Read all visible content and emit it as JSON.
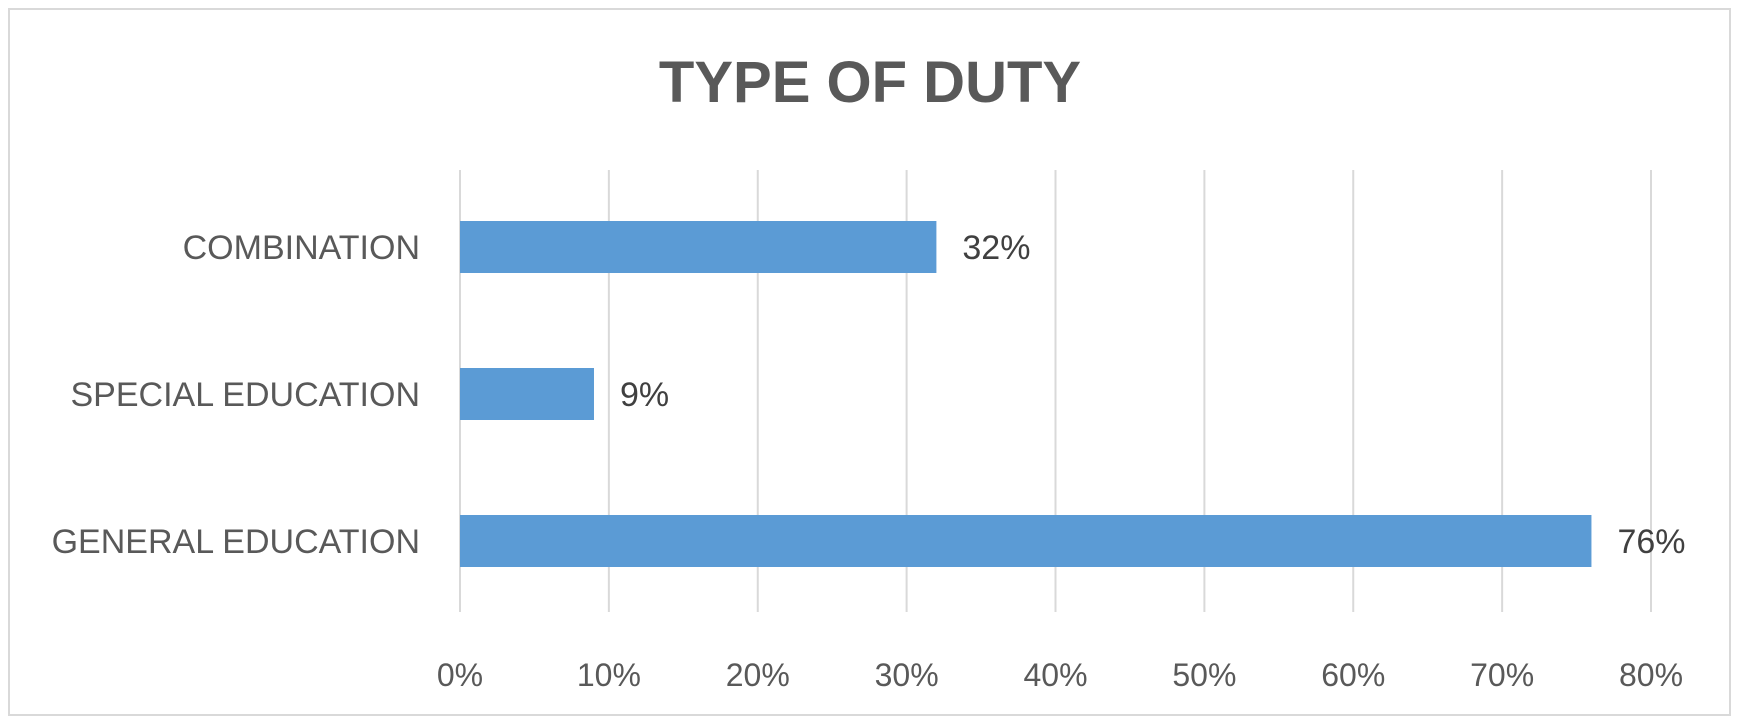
{
  "chart_data": {
    "type": "bar",
    "orientation": "horizontal",
    "title": "TYPE OF DUTY",
    "categories": [
      "COMBINATION",
      "SPECIAL EDUCATION",
      "GENERAL EDUCATION"
    ],
    "values": [
      32,
      9,
      76
    ],
    "data_labels": [
      "32%",
      "9%",
      "76%"
    ],
    "xlim": [
      0,
      80
    ],
    "x_ticks": [
      0,
      10,
      20,
      30,
      40,
      50,
      60,
      70,
      80
    ],
    "x_tick_labels": [
      "0%",
      "10%",
      "20%",
      "30%",
      "40%",
      "50%",
      "60%",
      "70%",
      "80%"
    ],
    "xlabel": "",
    "ylabel": "",
    "grid": "vertical",
    "legend": "none",
    "colors": {
      "bar": "#5b9bd5",
      "text": "#595959",
      "grid": "#d9d9d9"
    }
  }
}
